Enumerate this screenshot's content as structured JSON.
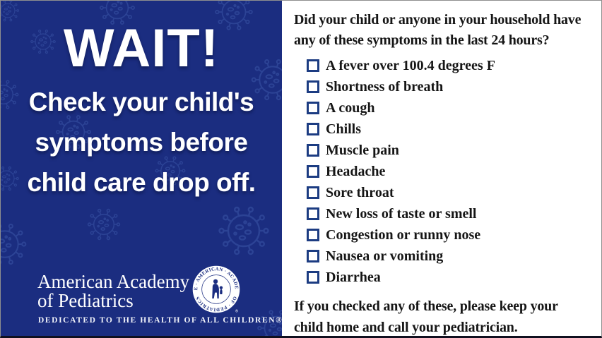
{
  "poster": {
    "left": {
      "headline": "WAIT!",
      "sub_lines": [
        "Check your child's",
        "symptoms before",
        "child care drop off."
      ],
      "bg_color": "#1b2d80",
      "virus_outline_color": "#3d59ab"
    },
    "logo": {
      "line1": "American Academy",
      "line2": "of Pediatrics",
      "tagline": "DEDICATED TO THE HEALTH OF ALL CHILDREN®",
      "seal_top": "THE · AMERICAN · ACADEMY",
      "seal_bottom": "OF · PEDIATRICS",
      "registered": "®"
    },
    "right": {
      "question_lines": [
        "Did your child or anyone in your household have",
        "any of these symptoms in the last 24 hours?"
      ],
      "symptoms": [
        "A fever over 100.4 degrees F",
        "Shortness of breath",
        "A cough",
        "Chills",
        "Muscle pain",
        "Headache",
        "Sore throat",
        "New loss of taste or smell",
        "Congestion or runny nose",
        "Nausea or vomiting",
        "Diarrhea"
      ],
      "footer_lines": [
        "If you checked any of these, please keep your",
        "child home and call your pediatrician."
      ],
      "checkbox_color": "#1c3c82",
      "text_color": "#161616"
    }
  }
}
